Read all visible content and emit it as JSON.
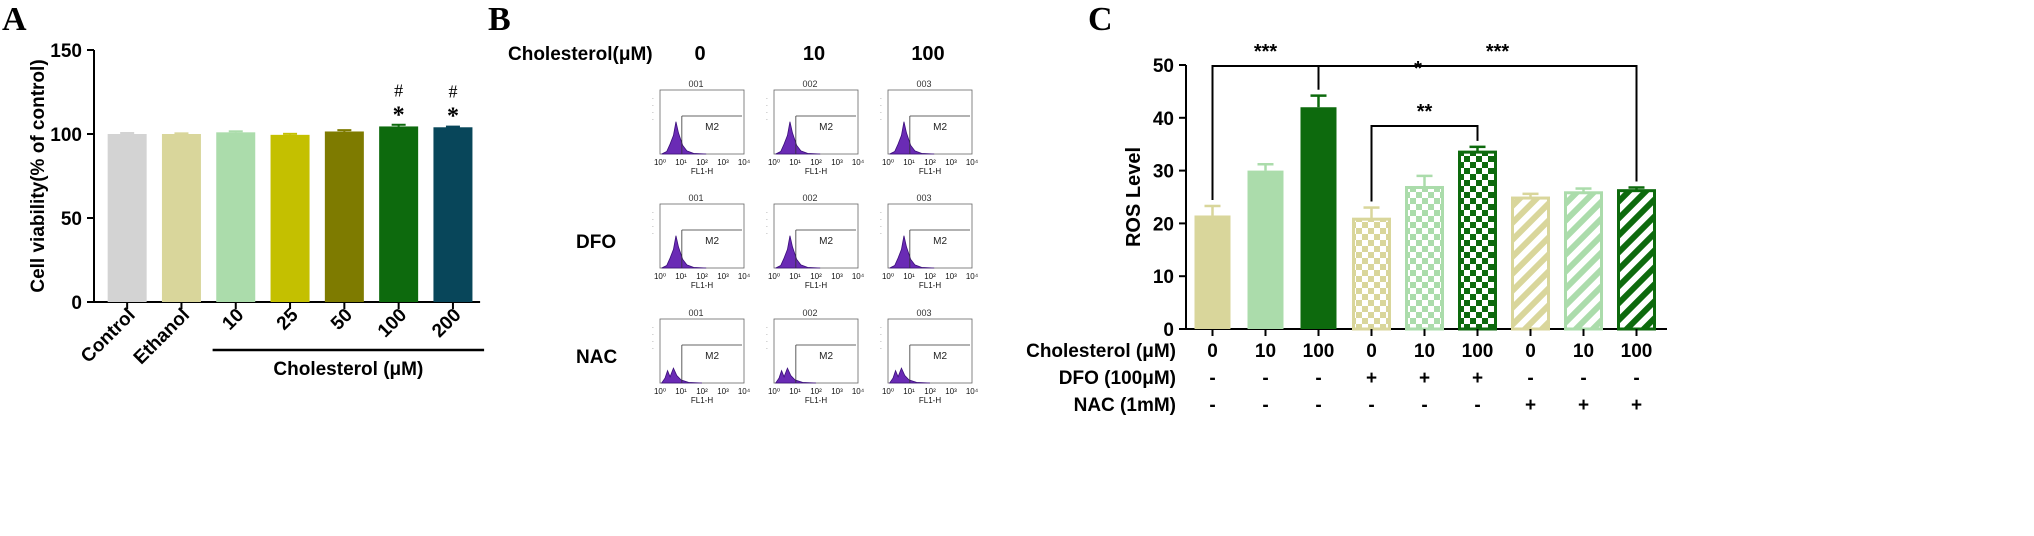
{
  "panels": {
    "A": "A",
    "B": "B",
    "C": "C"
  },
  "chart_data": [
    {
      "panel": "A",
      "type": "bar",
      "ylabel": "Cell viability(% of control)",
      "xgroup_label": "Cholesterol (μM)",
      "ylim": [
        0,
        150
      ],
      "yticks": [
        0,
        50,
        100,
        150
      ],
      "categories": [
        "Control",
        "Ethanol",
        "10",
        "25",
        "50",
        "100",
        "200"
      ],
      "values": [
        100,
        100,
        101,
        99.5,
        101.5,
        104.5,
        104
      ],
      "errors": [
        0.6,
        0.4,
        0.6,
        0.6,
        0.8,
        1.0,
        0.4
      ],
      "colors": [
        "#d3d3d3",
        "#d9d69b",
        "#abdcab",
        "#c4c000",
        "#7e7b00",
        "#0d6a0d",
        "#08465a"
      ],
      "annotations": [
        {
          "category": "100",
          "marks": [
            "#",
            "*"
          ]
        },
        {
          "category": "200",
          "marks": [
            "#",
            "*"
          ]
        }
      ]
    },
    {
      "panel": "C",
      "type": "bar",
      "ylabel": "ROS Level",
      "ylim": [
        0,
        50
      ],
      "yticks": [
        0,
        10,
        20,
        30,
        40,
        50
      ],
      "categories": [
        "0",
        "10",
        "100",
        "0",
        "10",
        "100",
        "0",
        "10",
        "100"
      ],
      "values": [
        21.5,
        30,
        42,
        20.8,
        26.8,
        33.5,
        24.8,
        25.8,
        26.2
      ],
      "errors": [
        1.8,
        1.2,
        2.2,
        2.2,
        2.2,
        1.0,
        0.8,
        0.8,
        0.6
      ],
      "fills": [
        "solid",
        "solid",
        "solid",
        "checker",
        "checker",
        "checker",
        "stripe",
        "stripe",
        "stripe"
      ],
      "colors": [
        "#d9d69b",
        "#abdcab",
        "#0d6a0d",
        "#d9d69b",
        "#abdcab",
        "#0d6a0d",
        "#d9d69b",
        "#abdcab",
        "#0d6a0d"
      ],
      "condition_rows": [
        {
          "label": "Cholesterol (μM)",
          "values": [
            "0",
            "10",
            "100",
            "0",
            "10",
            "100",
            "0",
            "10",
            "100"
          ]
        },
        {
          "label": "DFO (100μM)",
          "values": [
            "-",
            "-",
            "-",
            "+",
            "+",
            "+",
            "-",
            "-",
            "-"
          ]
        },
        {
          "label": "NAC (1mM)",
          "values": [
            "-",
            "-",
            "-",
            "-",
            "-",
            "-",
            "+",
            "+",
            "+"
          ]
        }
      ],
      "significance": [
        {
          "from": 0,
          "to": 2,
          "label": "***"
        },
        {
          "from": 2,
          "to": 8,
          "label": "***"
        },
        {
          "from": 2,
          "to": 5,
          "label": "*"
        },
        {
          "from": 3,
          "to": 5,
          "label": "**"
        }
      ]
    }
  ],
  "flow": {
    "column_title": "Cholesterol(μM)",
    "columns": [
      "0",
      "10",
      "100"
    ],
    "rows": [
      "",
      "DFO",
      "NAC"
    ],
    "plot_ids": [
      "001",
      "002",
      "003"
    ],
    "gate": "M2",
    "xaxis_label": "FL1-H",
    "xticks": [
      "10⁰",
      "10¹",
      "10²",
      "10³",
      "10⁴"
    ]
  }
}
